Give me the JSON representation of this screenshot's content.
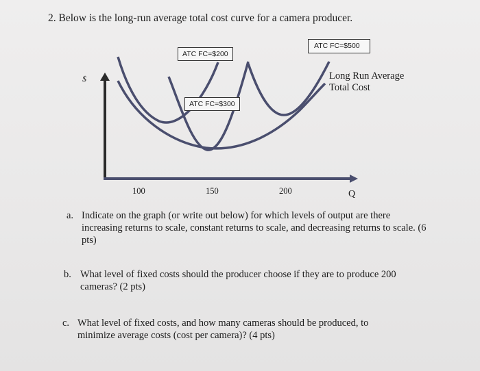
{
  "question": {
    "title": "2. Below is the long-run average total cost curve for a camera producer."
  },
  "graph": {
    "y_axis_label": "$",
    "x_axis_label": "Q",
    "x_ticks": [
      "100",
      "150",
      "200"
    ],
    "boxes": {
      "fc200": "ATC FC=$200",
      "fc300": "ATC FC=$300",
      "fc500": "ATC FC=$500"
    },
    "lrac_label_line1": "Long Run Average",
    "lrac_label_line2": "Total Cost",
    "colors": {
      "curve": "#4a4e6e",
      "axis": "#2a2a2a"
    }
  },
  "parts": {
    "a": {
      "letter": "a.",
      "line1": "Indicate on the graph (or write out below) for which levels of output are there",
      "line2": "increasing returns to scale, constant returns to scale, and decreasing returns to scale. (6",
      "line3": "pts)"
    },
    "b": {
      "letter": "b.",
      "line1": "What level of fixed costs should the producer choose if they are to produce 200",
      "line2": "cameras? (2 pts)"
    },
    "c": {
      "letter": "c.",
      "line1": "What level of fixed costs, and how many cameras should be produced, to",
      "line2": "minimize average costs (cost per camera)? (4 pts)"
    }
  }
}
